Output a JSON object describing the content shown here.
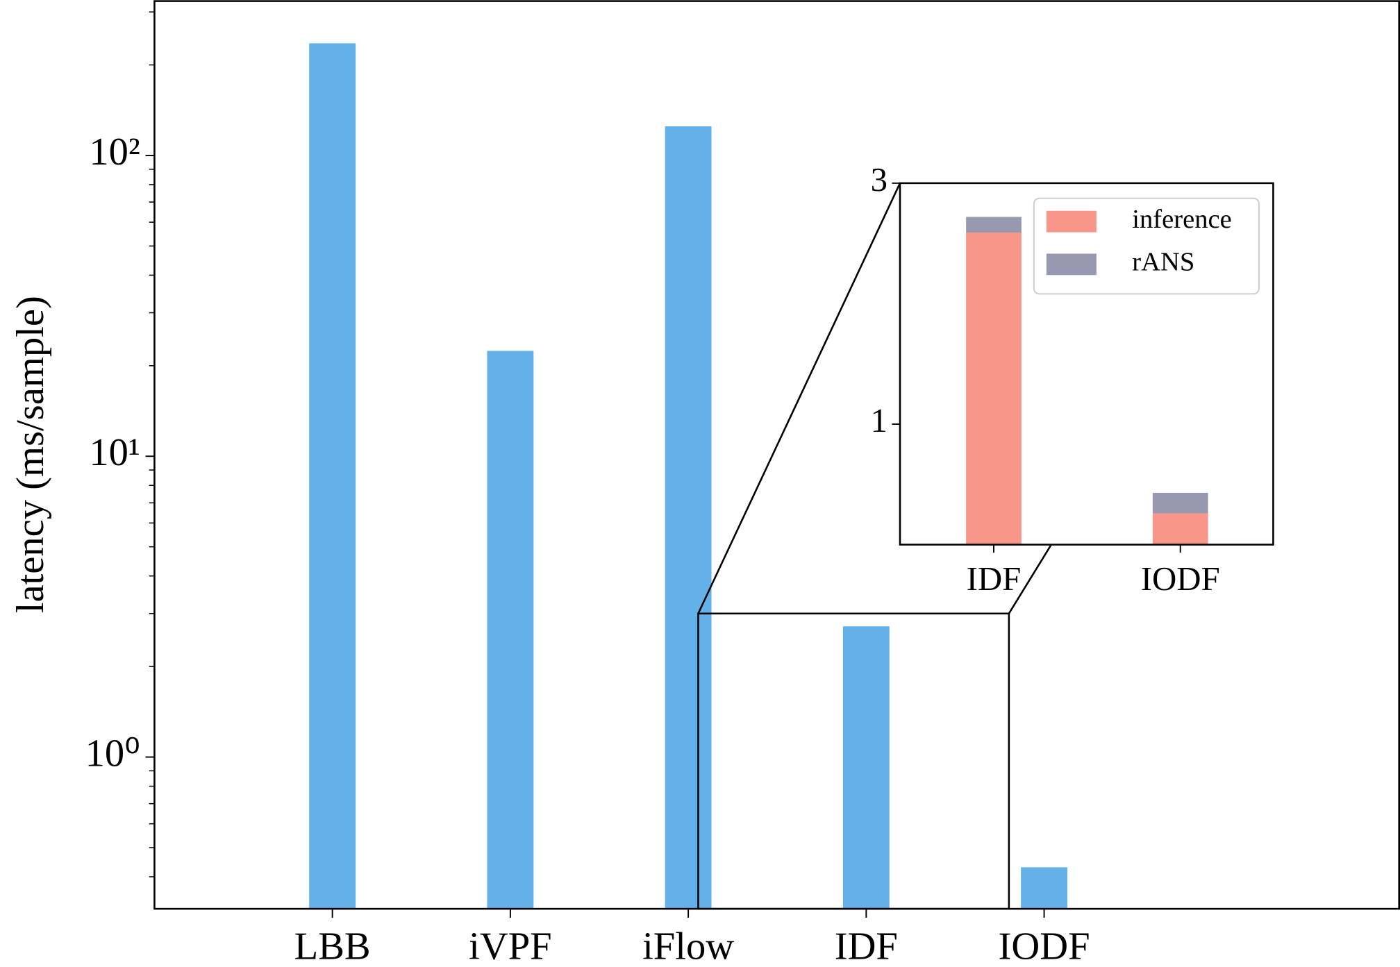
{
  "chart_data": [
    {
      "type": "bar",
      "ylabel": "latency (ms/sample)",
      "categories": [
        "LBB",
        "iVPF",
        "iFlow",
        "IDF",
        "IODF"
      ],
      "values": [
        236,
        22.4,
        125,
        2.72,
        0.43
      ],
      "color": "#64b0e9",
      "log_scale": true,
      "ylim": [
        0.313,
        326
      ],
      "yticks": [
        {
          "value": 1,
          "label": "10⁰"
        },
        {
          "value": 10,
          "label": "10¹"
        },
        {
          "value": 100,
          "label": "10²"
        }
      ]
    },
    {
      "type": "stacked_bar",
      "categories": [
        "IDF",
        "IODF"
      ],
      "series": [
        {
          "name": "inference",
          "color": "#f8968a",
          "values": [
            2.59,
            0.26
          ]
        },
        {
          "name": "rANS",
          "color": "#9898b0",
          "values": [
            0.13,
            0.17
          ]
        }
      ],
      "ylim": [
        0,
        3
      ],
      "yticks": [
        1,
        3
      ],
      "legend": "upper right"
    }
  ]
}
